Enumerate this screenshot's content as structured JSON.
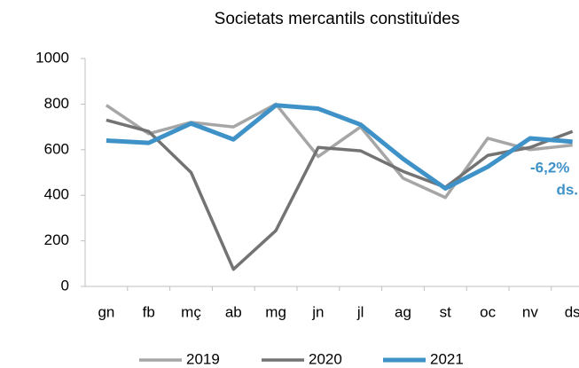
{
  "chart_data": {
    "type": "line",
    "title": "Societats mercantils  constituïdes",
    "categories": [
      "gn",
      "fb",
      "mç",
      "ab",
      "mg",
      "jn",
      "jl",
      "ag",
      "st",
      "oc",
      "nv",
      "ds"
    ],
    "series": [
      {
        "name": "2019",
        "color": "#a6a6a6",
        "values": [
          795,
          670,
          720,
          700,
          800,
          570,
          700,
          475,
          390,
          650,
          600,
          620
        ]
      },
      {
        "name": "2020",
        "color": "#737373",
        "values": [
          730,
          680,
          500,
          75,
          245,
          610,
          595,
          505,
          435,
          575,
          610,
          680
        ]
      },
      {
        "name": "2021",
        "color": "#3f92c8",
        "values": [
          640,
          630,
          715,
          645,
          795,
          780,
          710,
          560,
          430,
          525,
          650,
          635
        ]
      }
    ],
    "annotations": [
      "-6,2%",
      "ds."
    ],
    "ylim": [
      0,
      1000
    ],
    "yticks": [
      0,
      200,
      400,
      600,
      800,
      1000
    ],
    "grid": false,
    "legend": "bottom"
  }
}
